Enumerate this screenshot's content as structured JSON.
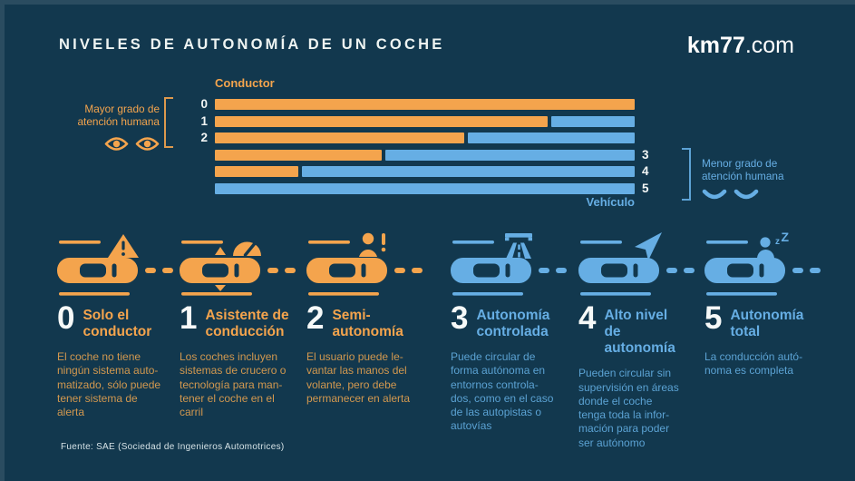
{
  "colors": {
    "background": "#12384E",
    "orange": "#F4A44D",
    "blue": "#66AEE4",
    "orange_desc": "#D2984F",
    "blue_desc": "#5BA2D3",
    "white": "#F2F6F5"
  },
  "header": {
    "title": "NIVELES DE AUTONOMÍA DE UN COCHE",
    "brand_primary": "km77",
    "brand_suffix": ".com"
  },
  "chart_data": {
    "type": "bar",
    "orientation": "horizontal",
    "stacked": true,
    "value_axis_range": [
      0,
      100
    ],
    "unit": "percent of driving attention",
    "categories": [
      "0",
      "1",
      "2",
      "3",
      "4",
      "5"
    ],
    "series": [
      {
        "name": "Conductor",
        "color": "#F4A44D",
        "values": [
          100,
          80,
          60,
          40,
          20,
          0
        ]
      },
      {
        "name": "Vehículo",
        "color": "#66AEE4",
        "values": [
          0,
          20,
          40,
          60,
          80,
          100
        ]
      }
    ],
    "left_annotation": {
      "text": "Mayor grado de\natención humana",
      "icon": "open-eyes"
    },
    "right_annotation": {
      "text": "Menor grado de\natención humana",
      "icon": "closed-eyes"
    },
    "legend_position": "none",
    "grid": false
  },
  "levels": [
    {
      "number": "0",
      "title": "Solo el\nconductor",
      "description": "El coche no tiene\nningún sistema auto-\nmatizado, sólo puede\ntener sistema de\nalerta",
      "icon": "warning-triangle",
      "theme": "orange"
    },
    {
      "number": "1",
      "title": "Asistente de\nconducción",
      "description": "Los coches incluyen\nsistemas de crucero o\ntecnología para man-\ntener el coche en el\ncarril",
      "icon": "speedometer",
      "theme": "orange"
    },
    {
      "number": "2",
      "title": "Semi-\nautonomía",
      "description": "El usuario puede le-\nvantar las manos del\nvolante, pero debe\npermanecer en alerta",
      "icon": "person-alert",
      "theme": "orange"
    },
    {
      "number": "3",
      "title": "Autonomía\ncontrolada",
      "description": "Puede circular de\nforma autónoma en\nentornos controla-\ndos, como en el caso\nde las autopistas o\nautovías",
      "icon": "highway",
      "theme": "blue"
    },
    {
      "number": "4",
      "title": "Alto nivel\nde autonomía",
      "description": "Pueden circular sin\nsupervisión en áreas\ndonde el coche\ntenga toda la infor-\nmación para poder\nser autónomo",
      "icon": "navigation-arrow",
      "theme": "blue"
    },
    {
      "number": "5",
      "title": "Autonomía\ntotal",
      "description": "La conducción autó-\nnoma es completa",
      "icon": "person-sleeping",
      "theme": "blue"
    }
  ],
  "footer": {
    "source": "Fuente: SAE (Sociedad de Ingenieros Automotrices)"
  }
}
